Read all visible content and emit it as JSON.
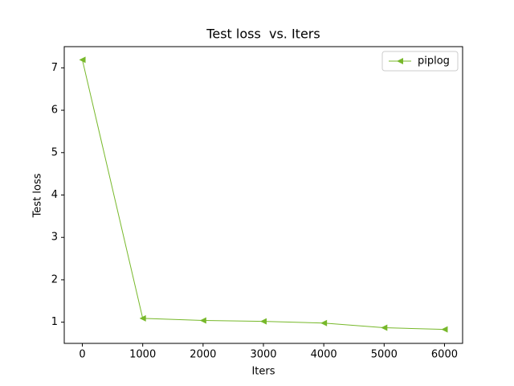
{
  "chart_data": {
    "type": "line",
    "title": "Test loss  vs. Iters",
    "x_label": "Iters",
    "y_label": "Test loss",
    "x": [
      0,
      1000,
      2000,
      3000,
      4000,
      5000,
      6000
    ],
    "series": [
      {
        "name": "piplog",
        "color": "#77b82a",
        "marker": "triangle-left",
        "values": [
          7.19,
          1.09,
          1.04,
          1.02,
          0.98,
          0.87,
          0.83
        ]
      }
    ],
    "xlim": [
      -300,
      6300
    ],
    "xticks": [
      0,
      1000,
      2000,
      3000,
      4000,
      5000,
      6000
    ],
    "ylim": [
      0.5,
      7.5
    ],
    "yticks": [
      1,
      2,
      3,
      4,
      5,
      6,
      7
    ],
    "grid": false,
    "legend": "upper right"
  }
}
